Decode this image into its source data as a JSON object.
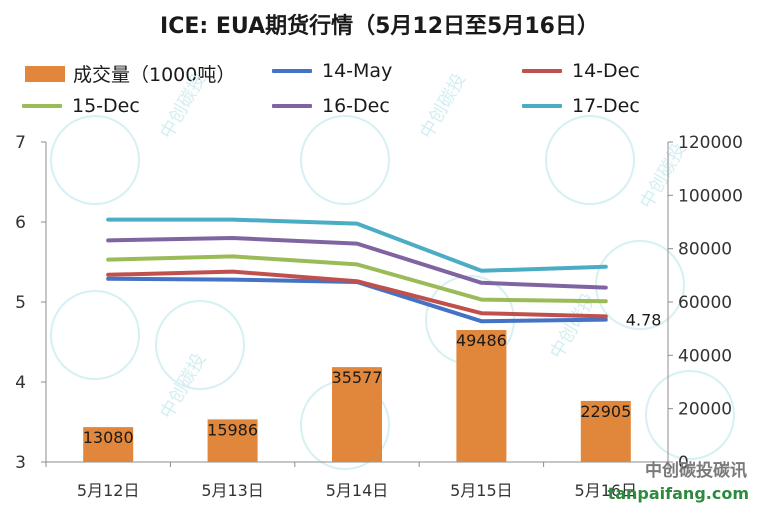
{
  "title": "ICE: EUA期货行情（5月12日至5月16日）",
  "watermark": {
    "logo_text": "中创碳投碳讯",
    "url": "tanpaifang.com",
    "pattern_text": "中创碳投"
  },
  "colors": {
    "volume": "#E0873C",
    "14-May": "#4472C4",
    "14-Dec": "#C0504D",
    "15-Dec": "#9BBB59",
    "16-Dec": "#8064A2",
    "17-Dec": "#4BACC6"
  },
  "chart_data": {
    "type": "bar",
    "title": "ICE: EUA期货行情（5月12日至5月16日）",
    "categories": [
      "5月12日",
      "5月13日",
      "5月14日",
      "5月15日",
      "5月16日"
    ],
    "bar_series": {
      "name": "成交量（1000吨）",
      "values": [
        13080,
        15986,
        35577,
        49486,
        22905
      ],
      "data_labels": [
        "13080",
        "15986",
        "35577",
        "49486",
        "22905"
      ],
      "axis": "right"
    },
    "line_series": [
      {
        "name": "14-May",
        "values": [
          5.29,
          5.28,
          5.25,
          4.76,
          4.78
        ],
        "axis": "left"
      },
      {
        "name": "14-Dec",
        "values": [
          5.34,
          5.38,
          5.26,
          4.86,
          4.82
        ],
        "axis": "left"
      },
      {
        "name": "15-Dec",
        "values": [
          5.53,
          5.57,
          5.47,
          5.03,
          5.01
        ],
        "axis": "left"
      },
      {
        "name": "16-Dec",
        "values": [
          5.77,
          5.8,
          5.73,
          5.24,
          5.18
        ],
        "axis": "left"
      },
      {
        "name": "17-Dec",
        "values": [
          6.03,
          6.03,
          5.98,
          5.39,
          5.44
        ],
        "axis": "left"
      }
    ],
    "annotation": "4.78",
    "left_axis": {
      "range": [
        3,
        7
      ],
      "ticks": [
        "3",
        "4",
        "5",
        "6",
        "7"
      ]
    },
    "right_axis": {
      "range": [
        0,
        120000
      ],
      "ticks": [
        "0",
        "20000",
        "40000",
        "60000",
        "80000",
        "100000",
        "120000"
      ]
    },
    "grid": false,
    "legend": {
      "placement": "top",
      "items": [
        "成交量（1000吨）",
        "14-May",
        "14-Dec",
        "15-Dec",
        "16-Dec",
        "17-Dec"
      ]
    }
  }
}
